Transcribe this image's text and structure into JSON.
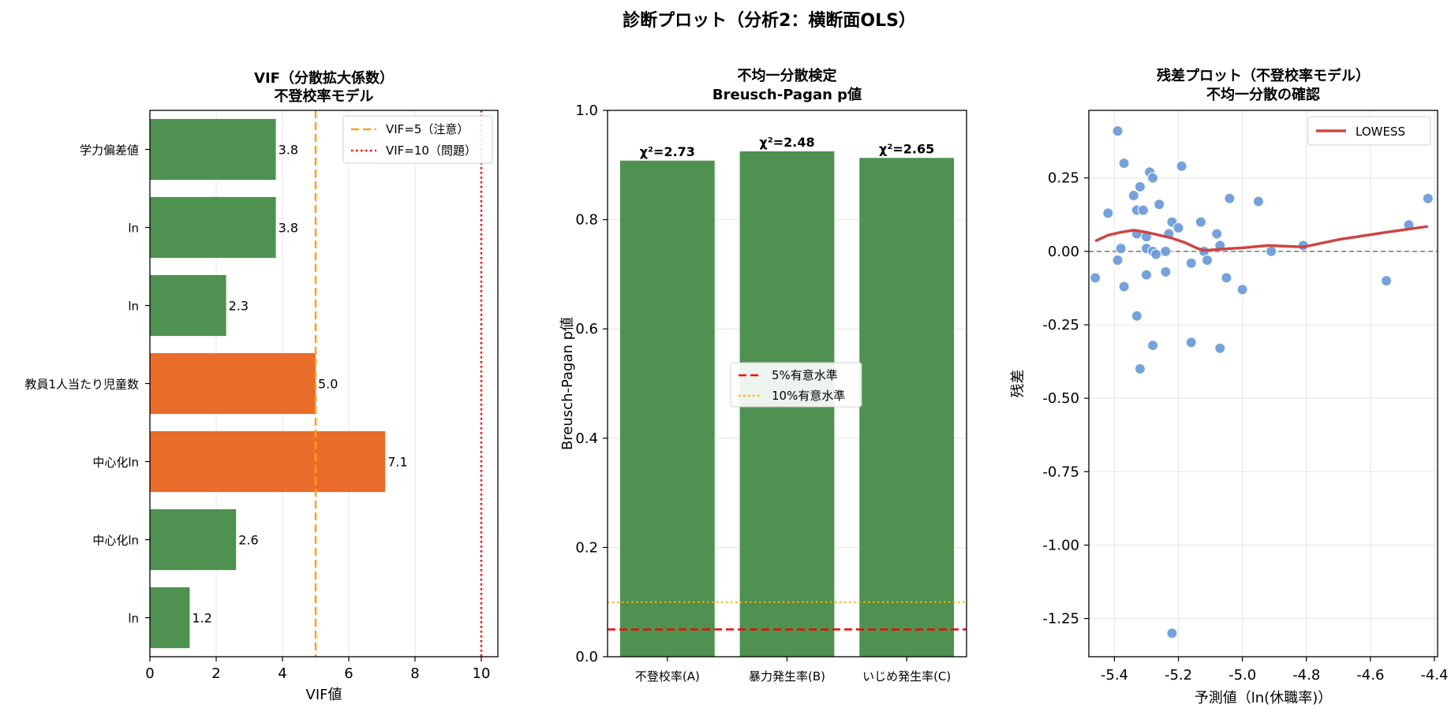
{
  "suptitle": "診断プロット（分析2：横断面OLS）",
  "colors": {
    "green": "#4e9150",
    "orange": "#ea6c2a",
    "blue": "#6a9ad8",
    "red_line": "#cd4543"
  },
  "chart_data": [
    {
      "type": "bar",
      "orientation": "horizontal",
      "title_lines": [
        "VIF（分散拡大係数）",
        "不登校率モデル"
      ],
      "xlabel": "VIF値",
      "ylabel": "",
      "xlim": [
        0,
        10.5
      ],
      "xticks": [
        0,
        2,
        4,
        6,
        8,
        10
      ],
      "categories": [
        "学力偏差値",
        "ln",
        "ln",
        "教員1人当たり児童数",
        "中心化ln",
        "中心化ln",
        "ln"
      ],
      "values": [
        3.8,
        3.8,
        2.3,
        5.0,
        7.1,
        2.6,
        1.2
      ],
      "value_labels": [
        "3.8",
        "3.8",
        "2.3",
        "5.0",
        "7.1",
        "2.6",
        "1.2"
      ],
      "bar_colors": [
        "#4e9150",
        "#4e9150",
        "#4e9150",
        "#ea6c2a",
        "#ea6c2a",
        "#4e9150",
        "#4e9150"
      ],
      "reference_lines": [
        {
          "value": 5,
          "label": "VIF=5（注意）",
          "color": "#ff9f1a",
          "style": "dashed"
        },
        {
          "value": 10,
          "label": "VIF=10（問題）",
          "color": "#ff0000",
          "style": "dotted"
        }
      ],
      "legend_position": "top-right",
      "grid": true
    },
    {
      "type": "bar",
      "title_lines": [
        "不均一分散検定",
        "Breusch-Pagan p値"
      ],
      "xlabel": "",
      "ylabel": "Breusch-Pagan p値",
      "ylim": [
        0,
        1.0
      ],
      "yticks": [
        0.0,
        0.2,
        0.4,
        0.6,
        0.8,
        1.0
      ],
      "categories": [
        "不登校率(A)",
        "暴力発生率(B)",
        "いじめ発生率(C)"
      ],
      "values": [
        0.908,
        0.925,
        0.913
      ],
      "value_labels": [
        "χ²=2.73",
        "χ²=2.48",
        "χ²=2.65"
      ],
      "reference_lines": [
        {
          "value": 0.05,
          "label": "5%有意水準",
          "color": "#ff0000",
          "style": "dashed"
        },
        {
          "value": 0.1,
          "label": "10%有意水準",
          "color": "#ffb000",
          "style": "dotted"
        }
      ],
      "legend_position": "center",
      "grid": true
    },
    {
      "type": "scatter",
      "title_lines": [
        "残差プロット（不登校率モデル）",
        "不均一分散の確認"
      ],
      "xlabel": "予測値（ln(休職率)）",
      "ylabel": "残差",
      "xlim": [
        -5.48,
        -4.39
      ],
      "ylim": [
        -1.38,
        0.48
      ],
      "xticks": [
        -5.4,
        -5.2,
        -5.0,
        -4.8,
        -4.6,
        -4.4
      ],
      "yticks": [
        0.25,
        0.0,
        -0.25,
        -0.5,
        -0.75,
        -1.0,
        -1.25
      ],
      "points": [
        [
          -5.39,
          0.41
        ],
        [
          -5.37,
          0.3
        ],
        [
          -5.42,
          0.13
        ],
        [
          -5.46,
          -0.09
        ],
        [
          -5.39,
          -0.03
        ],
        [
          -5.38,
          0.01
        ],
        [
          -5.37,
          -0.12
        ],
        [
          -5.34,
          0.19
        ],
        [
          -5.33,
          0.14
        ],
        [
          -5.33,
          0.06
        ],
        [
          -5.32,
          0.22
        ],
        [
          -5.31,
          0.14
        ],
        [
          -5.3,
          0.05
        ],
        [
          -5.3,
          0.01
        ],
        [
          -5.3,
          -0.08
        ],
        [
          -5.29,
          0.27
        ],
        [
          -5.28,
          0.25
        ],
        [
          -5.28,
          0.0
        ],
        [
          -5.27,
          -0.01
        ],
        [
          -5.26,
          0.16
        ],
        [
          -5.24,
          0.0
        ],
        [
          -5.24,
          -0.07
        ],
        [
          -5.23,
          0.06
        ],
        [
          -5.22,
          0.1
        ],
        [
          -5.2,
          0.08
        ],
        [
          -5.19,
          0.29
        ],
        [
          -5.33,
          -0.22
        ],
        [
          -5.32,
          -0.4
        ],
        [
          -5.28,
          -0.32
        ],
        [
          -5.16,
          -0.04
        ],
        [
          -5.16,
          -0.31
        ],
        [
          -5.13,
          0.1
        ],
        [
          -5.12,
          0.0
        ],
        [
          -5.11,
          -0.03
        ],
        [
          -5.08,
          0.06
        ],
        [
          -5.07,
          0.02
        ],
        [
          -5.07,
          -0.33
        ],
        [
          -5.05,
          -0.09
        ],
        [
          -5.04,
          0.18
        ],
        [
          -5.0,
          -0.13
        ],
        [
          -4.95,
          0.17
        ],
        [
          -4.91,
          0.0
        ],
        [
          -4.81,
          0.02
        ],
        [
          -4.55,
          -0.1
        ],
        [
          -4.48,
          0.09
        ],
        [
          -4.42,
          0.18
        ],
        [
          -5.22,
          -1.3
        ]
      ],
      "lowess": {
        "name": "LOWESS",
        "x": [
          -5.46,
          -5.42,
          -5.38,
          -5.34,
          -5.3,
          -5.26,
          -5.22,
          -5.18,
          -5.14,
          -5.12,
          -5.06,
          -5.0,
          -4.92,
          -4.81,
          -4.7,
          -4.55,
          -4.42
        ],
        "y": [
          0.035,
          0.055,
          0.065,
          0.072,
          0.065,
          0.055,
          0.045,
          0.03,
          0.01,
          0.003,
          0.008,
          0.012,
          0.02,
          0.015,
          0.04,
          0.065,
          0.085
        ]
      },
      "reference_line": {
        "value": 0,
        "color": "#777777",
        "style": "dashed"
      },
      "legend_position": "top-right",
      "grid": true
    }
  ]
}
